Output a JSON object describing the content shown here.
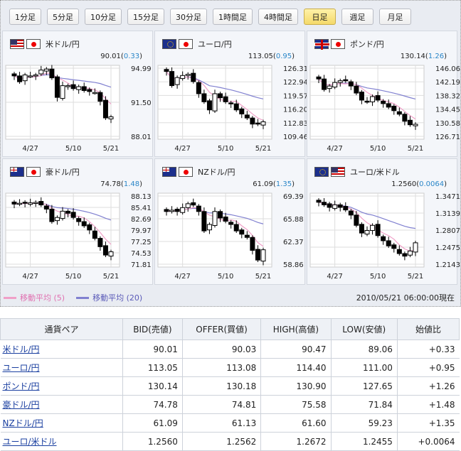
{
  "timeframes": [
    {
      "label": "1分足"
    },
    {
      "label": "5分足"
    },
    {
      "label": "10分足"
    },
    {
      "label": "15分足"
    },
    {
      "label": "30分足"
    },
    {
      "label": "1時間足"
    },
    {
      "label": "4時間足"
    },
    {
      "label": "日足",
      "active": true
    },
    {
      "label": "週足"
    },
    {
      "label": "月足"
    }
  ],
  "colors": {
    "ma5": "#f0a0c8",
    "ma20": "#8080d0",
    "up": "#ffffff",
    "down": "#000000",
    "change": "#2a86c8"
  },
  "x_labels": [
    "4/27",
    "5/10",
    "5/21"
  ],
  "panels": [
    {
      "name": "米ドル/円",
      "flags": [
        "us",
        "jp"
      ],
      "price": "90.01",
      "change": "0.33",
      "yticks": [
        "94.99",
        "91.50",
        "88.01"
      ],
      "ylim": [
        88.01,
        94.99
      ],
      "closes": [
        94.2,
        93.6,
        94.3,
        94.2,
        94.3,
        94.8,
        94.9,
        94.0,
        92.0,
        93.2,
        93.2,
        92.9,
        93.1,
        92.7,
        92.6,
        92.5,
        91.6,
        89.9,
        90.01
      ]
    },
    {
      "name": "ユーロ/円",
      "flags": [
        "eu",
        "jp"
      ],
      "price": "113.05",
      "change": "0.95",
      "yticks": [
        "126.31",
        "122.94",
        "119.57",
        "116.20",
        "112.83",
        "109.46"
      ],
      "ylim": [
        109.46,
        126.31
      ],
      "closes": [
        125.5,
        122,
        124,
        124.5,
        124.8,
        123,
        120,
        118,
        116,
        120,
        119,
        118,
        117.5,
        116,
        115,
        114,
        112.5,
        112.5,
        113.05
      ]
    },
    {
      "name": "ポンド/円",
      "flags": [
        "gb",
        "jp"
      ],
      "price": "130.14",
      "change": "1.26",
      "yticks": [
        "146.06",
        "142.19",
        "138.32",
        "134.45",
        "130.58",
        "126.71"
      ],
      "ylim": [
        126.71,
        146.06
      ],
      "closes": [
        143,
        140,
        141,
        142,
        142.5,
        142.5,
        141,
        139,
        137,
        136.5,
        138,
        137,
        136,
        135,
        134,
        133,
        131,
        130,
        130.14
      ]
    },
    {
      "name": "豪ドル/円",
      "flags": [
        "au",
        "jp"
      ],
      "price": "74.78",
      "change": "1.48",
      "yticks": [
        "88.13",
        "85.41",
        "82.69",
        "79.97",
        "77.25",
        "74.53",
        "71.81"
      ],
      "ylim": [
        71.81,
        88.13
      ],
      "closes": [
        86.2,
        86.4,
        86.4,
        86.5,
        86.6,
        86,
        85,
        82,
        83,
        84.5,
        84,
        83,
        82,
        81,
        80,
        78,
        76,
        74,
        74.78
      ]
    },
    {
      "name": "NZドル/円",
      "flags": [
        "au",
        "jp"
      ],
      "price": "61.09",
      "change": "1.35",
      "yticks": [
        "69.39",
        "65.88",
        "62.37",
        "58.86"
      ],
      "ylim": [
        58.86,
        69.39
      ],
      "closes": [
        67,
        67.2,
        67,
        67.6,
        68.2,
        68,
        67,
        64,
        65,
        67,
        66,
        65.5,
        65,
        64,
        63.5,
        63,
        61,
        59.5,
        61.09
      ]
    },
    {
      "name": "ユーロ/米ドル",
      "flags": [
        "eu",
        "us"
      ],
      "price": "1.2560",
      "change": "0.0064",
      "yticks": [
        "1.3471",
        "1.3139",
        "1.2807",
        "1.2475",
        "1.2143"
      ],
      "ylim": [
        1.2143,
        1.3471
      ],
      "closes": [
        1.335,
        1.33,
        1.325,
        1.33,
        1.325,
        1.32,
        1.31,
        1.29,
        1.275,
        1.28,
        1.29,
        1.27,
        1.26,
        1.25,
        1.245,
        1.235,
        1.23,
        1.24,
        1.256
      ]
    }
  ],
  "legend": {
    "ma5": "移動平均 (5)",
    "ma20": "移動平均 (20)"
  },
  "timestamp": "2010/05/21 06:00:00現在",
  "table": {
    "headers": [
      "通貨ペア",
      "BID(売値)",
      "OFFER(買値)",
      "HIGH(高値)",
      "LOW(安値)",
      "始値比"
    ],
    "rows": [
      [
        "米ドル/円",
        "90.01",
        "90.03",
        "90.47",
        "89.06",
        "+0.33"
      ],
      [
        "ユーロ/円",
        "113.05",
        "113.08",
        "114.40",
        "111.00",
        "+0.95"
      ],
      [
        "ポンド/円",
        "130.14",
        "130.18",
        "130.90",
        "127.65",
        "+1.26"
      ],
      [
        "豪ドル/円",
        "74.78",
        "74.81",
        "75.58",
        "71.84",
        "+1.48"
      ],
      [
        "NZドル/円",
        "61.09",
        "61.13",
        "61.60",
        "59.23",
        "+1.35"
      ],
      [
        "ユーロ/米ドル",
        "1.2560",
        "1.2562",
        "1.2672",
        "1.2455",
        "+0.0064"
      ]
    ]
  }
}
